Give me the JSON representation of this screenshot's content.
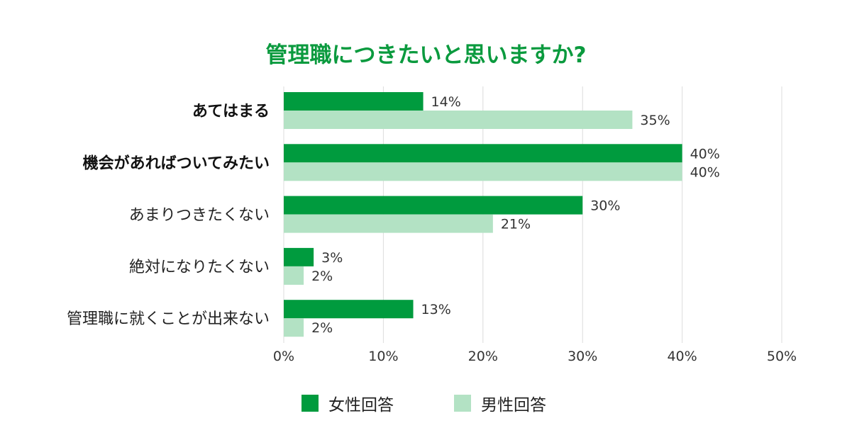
{
  "chart_data": {
    "type": "bar",
    "orientation": "horizontal",
    "title": "管理職につきたいと思いますか?",
    "categories": [
      "あてはまる",
      "機会があればついてみたい",
      "あまりつきたくない",
      "絶対になりたくない",
      "管理職に就くことが出来ない"
    ],
    "emphasized_categories": [
      "あてはまる",
      "機会があればついてみたい"
    ],
    "series": [
      {
        "name": "女性回答",
        "values": [
          14,
          40,
          30,
          3,
          13
        ],
        "labels": [
          "14%",
          "40%",
          "30%",
          "3%",
          "13%"
        ],
        "color": "#009b3e"
      },
      {
        "name": "男性回答",
        "values": [
          35,
          40,
          21,
          2,
          2
        ],
        "labels": [
          "35%",
          "40%",
          "21%",
          "2%",
          "2%"
        ],
        "color": "#b3e2c4"
      }
    ],
    "xlim": [
      0,
      50
    ],
    "xticks": [
      "0%",
      "10%",
      "20%",
      "30%",
      "40%",
      "50%"
    ],
    "grid": true,
    "legend_position": "bottom"
  }
}
